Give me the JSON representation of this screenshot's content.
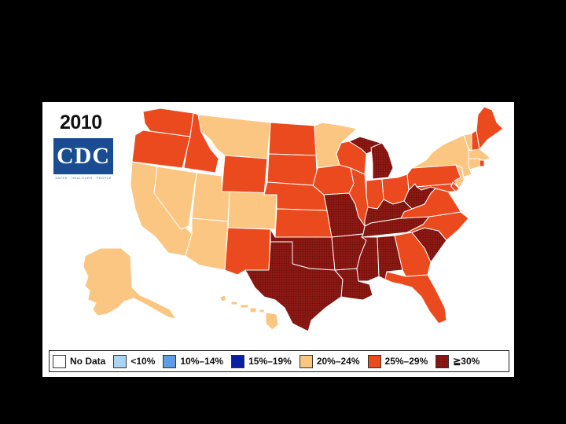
{
  "map": {
    "year": "2010",
    "logo_text": "CDC",
    "logo_tagline": "SAFER · HEALTHIER · PEOPLE",
    "legend": [
      {
        "label": "No Data",
        "color": "#ffffff"
      },
      {
        "label": "<10%",
        "color": "#a8d4f5"
      },
      {
        "label": "10%–14%",
        "color": "#5b9ee6"
      },
      {
        "label": "15%–19%",
        "color": "#0a1fa8"
      },
      {
        "label": "20%–24%",
        "color": "#fbc682"
      },
      {
        "label": "25%–29%",
        "color": "#ea4a1e"
      },
      {
        "label": "≧30%",
        "color": "#8b1812"
      }
    ],
    "states": [
      {
        "abbr": "WA",
        "band": "25%–29%"
      },
      {
        "abbr": "OR",
        "band": "25%–29%"
      },
      {
        "abbr": "CA",
        "band": "20%–24%"
      },
      {
        "abbr": "NV",
        "band": "20%–24%"
      },
      {
        "abbr": "ID",
        "band": "25%–29%"
      },
      {
        "abbr": "MT",
        "band": "20%–24%"
      },
      {
        "abbr": "WY",
        "band": "25%–29%"
      },
      {
        "abbr": "UT",
        "band": "20%–24%"
      },
      {
        "abbr": "AZ",
        "band": "20%–24%"
      },
      {
        "abbr": "CO",
        "band": "20%–24%"
      },
      {
        "abbr": "NM",
        "band": "25%–29%"
      },
      {
        "abbr": "ND",
        "band": "25%–29%"
      },
      {
        "abbr": "SD",
        "band": "25%–29%"
      },
      {
        "abbr": "NE",
        "band": "25%–29%"
      },
      {
        "abbr": "KS",
        "band": "25%–29%"
      },
      {
        "abbr": "OK",
        "band": "≧30%"
      },
      {
        "abbr": "TX",
        "band": "≧30%"
      },
      {
        "abbr": "MN",
        "band": "20%–24%"
      },
      {
        "abbr": "IA",
        "band": "25%–29%"
      },
      {
        "abbr": "MO",
        "band": "≧30%"
      },
      {
        "abbr": "AR",
        "band": "≧30%"
      },
      {
        "abbr": "LA",
        "band": "≧30%"
      },
      {
        "abbr": "WI",
        "band": "25%–29%"
      },
      {
        "abbr": "IL",
        "band": "25%–29%"
      },
      {
        "abbr": "MI",
        "band": "≧30%"
      },
      {
        "abbr": "IN",
        "band": "25%–29%"
      },
      {
        "abbr": "OH",
        "band": "25%–29%"
      },
      {
        "abbr": "KY",
        "band": "≧30%"
      },
      {
        "abbr": "TN",
        "band": "≧30%"
      },
      {
        "abbr": "MS",
        "band": "≧30%"
      },
      {
        "abbr": "AL",
        "band": "≧30%"
      },
      {
        "abbr": "GA",
        "band": "25%–29%"
      },
      {
        "abbr": "FL",
        "band": "25%–29%"
      },
      {
        "abbr": "SC",
        "band": "≧30%"
      },
      {
        "abbr": "NC",
        "band": "25%–29%"
      },
      {
        "abbr": "VA",
        "band": "25%–29%"
      },
      {
        "abbr": "WV",
        "band": "≧30%"
      },
      {
        "abbr": "PA",
        "band": "25%–29%"
      },
      {
        "abbr": "NY",
        "band": "20%–24%"
      },
      {
        "abbr": "ME",
        "band": "25%–29%"
      },
      {
        "abbr": "NH",
        "band": "25%–29%"
      },
      {
        "abbr": "VT",
        "band": "20%–24%"
      },
      {
        "abbr": "MA",
        "band": "20%–24%"
      },
      {
        "abbr": "CT",
        "band": "20%–24%"
      },
      {
        "abbr": "RI",
        "band": "25%–29%"
      },
      {
        "abbr": "NJ",
        "band": "20%–24%"
      },
      {
        "abbr": "DE",
        "band": "25%–29%"
      },
      {
        "abbr": "MD",
        "band": "25%–29%"
      },
      {
        "abbr": "AK",
        "band": "20%–24%"
      },
      {
        "abbr": "HI",
        "band": "20%–24%"
      }
    ]
  }
}
